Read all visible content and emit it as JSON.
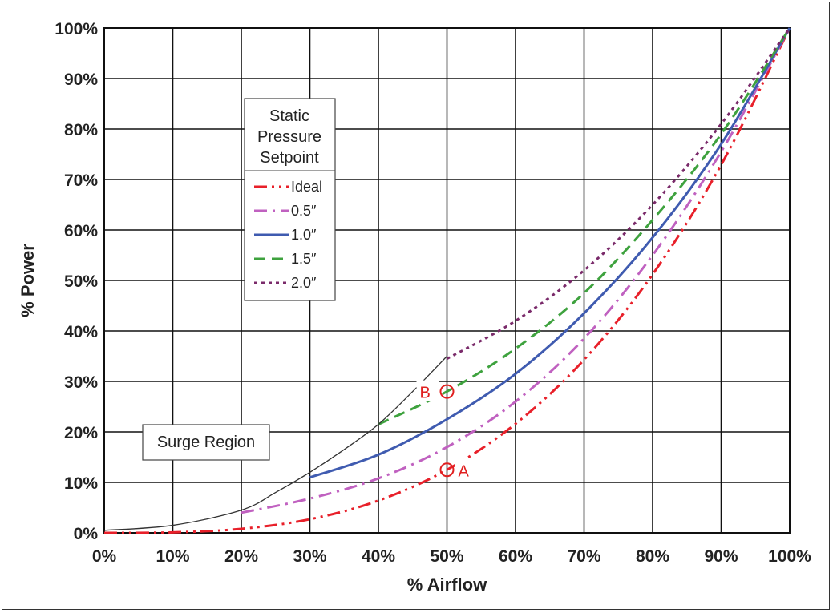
{
  "chart_data": {
    "type": "line",
    "title": "",
    "xlabel": "% Airflow",
    "ylabel": "% Power",
    "xlim": [
      0,
      100
    ],
    "ylim": [
      0,
      100
    ],
    "x_ticks": [
      "0%",
      "10%",
      "20%",
      "30%",
      "40%",
      "50%",
      "60%",
      "70%",
      "80%",
      "90%",
      "100%"
    ],
    "y_ticks": [
      "0%",
      "10%",
      "20%",
      "30%",
      "40%",
      "50%",
      "60%",
      "70%",
      "80%",
      "90%",
      "100%"
    ],
    "grid": true,
    "legend": {
      "title_lines": [
        "Static",
        "Pressure",
        "Setpoint"
      ],
      "placement": "upper-left"
    },
    "series": [
      {
        "name": "Ideal",
        "color": "#e8202a",
        "dash": "dashdotdot",
        "x": [
          0,
          10,
          20,
          30,
          40,
          50,
          60,
          70,
          80,
          90,
          100
        ],
        "y": [
          0,
          0.1,
          0.8,
          2.7,
          6.4,
          12.5,
          21.6,
          34.3,
          51.2,
          72.9,
          100
        ]
      },
      {
        "name": "0.5″",
        "color": "#c061c0",
        "dash": "dashdot",
        "x": [
          20,
          30,
          40,
          50,
          60,
          70,
          80,
          90,
          100
        ],
        "y": [
          4,
          6.8,
          10.8,
          17,
          26,
          38.5,
          55,
          75.5,
          100
        ]
      },
      {
        "name": "1.0″",
        "color": "#3f5bb0",
        "dash": "solid",
        "x": [
          30,
          40,
          50,
          60,
          70,
          80,
          90,
          100
        ],
        "y": [
          11,
          15.5,
          22.5,
          31.5,
          43.5,
          58.5,
          77,
          100
        ]
      },
      {
        "name": "1.5″",
        "color": "#3ea23e",
        "dash": "dashed",
        "x": [
          40,
          50,
          60,
          70,
          80,
          90,
          100
        ],
        "y": [
          21.5,
          28,
          36.5,
          47.5,
          62,
          79,
          100
        ]
      },
      {
        "name": "2.0″",
        "color": "#7a2a6a",
        "dash": "dotted",
        "x": [
          50,
          60,
          70,
          80,
          90,
          100
        ],
        "y": [
          34.5,
          42,
          52,
          65,
          81,
          100
        ]
      },
      {
        "name": "Surge boundary",
        "color": "#333333",
        "dash": "solid",
        "thin": true,
        "x": [
          0,
          10,
          20,
          25,
          30,
          35,
          40,
          45,
          50
        ],
        "y": [
          0.5,
          1.5,
          4.5,
          8,
          12,
          16.5,
          21.5,
          28,
          35
        ]
      }
    ],
    "annotations": [
      {
        "label": "A",
        "x": 50,
        "y": 12.5,
        "side": "right"
      },
      {
        "label": "B",
        "x": 50,
        "y": 28,
        "side": "left"
      }
    ],
    "region_label": "Surge Region"
  }
}
